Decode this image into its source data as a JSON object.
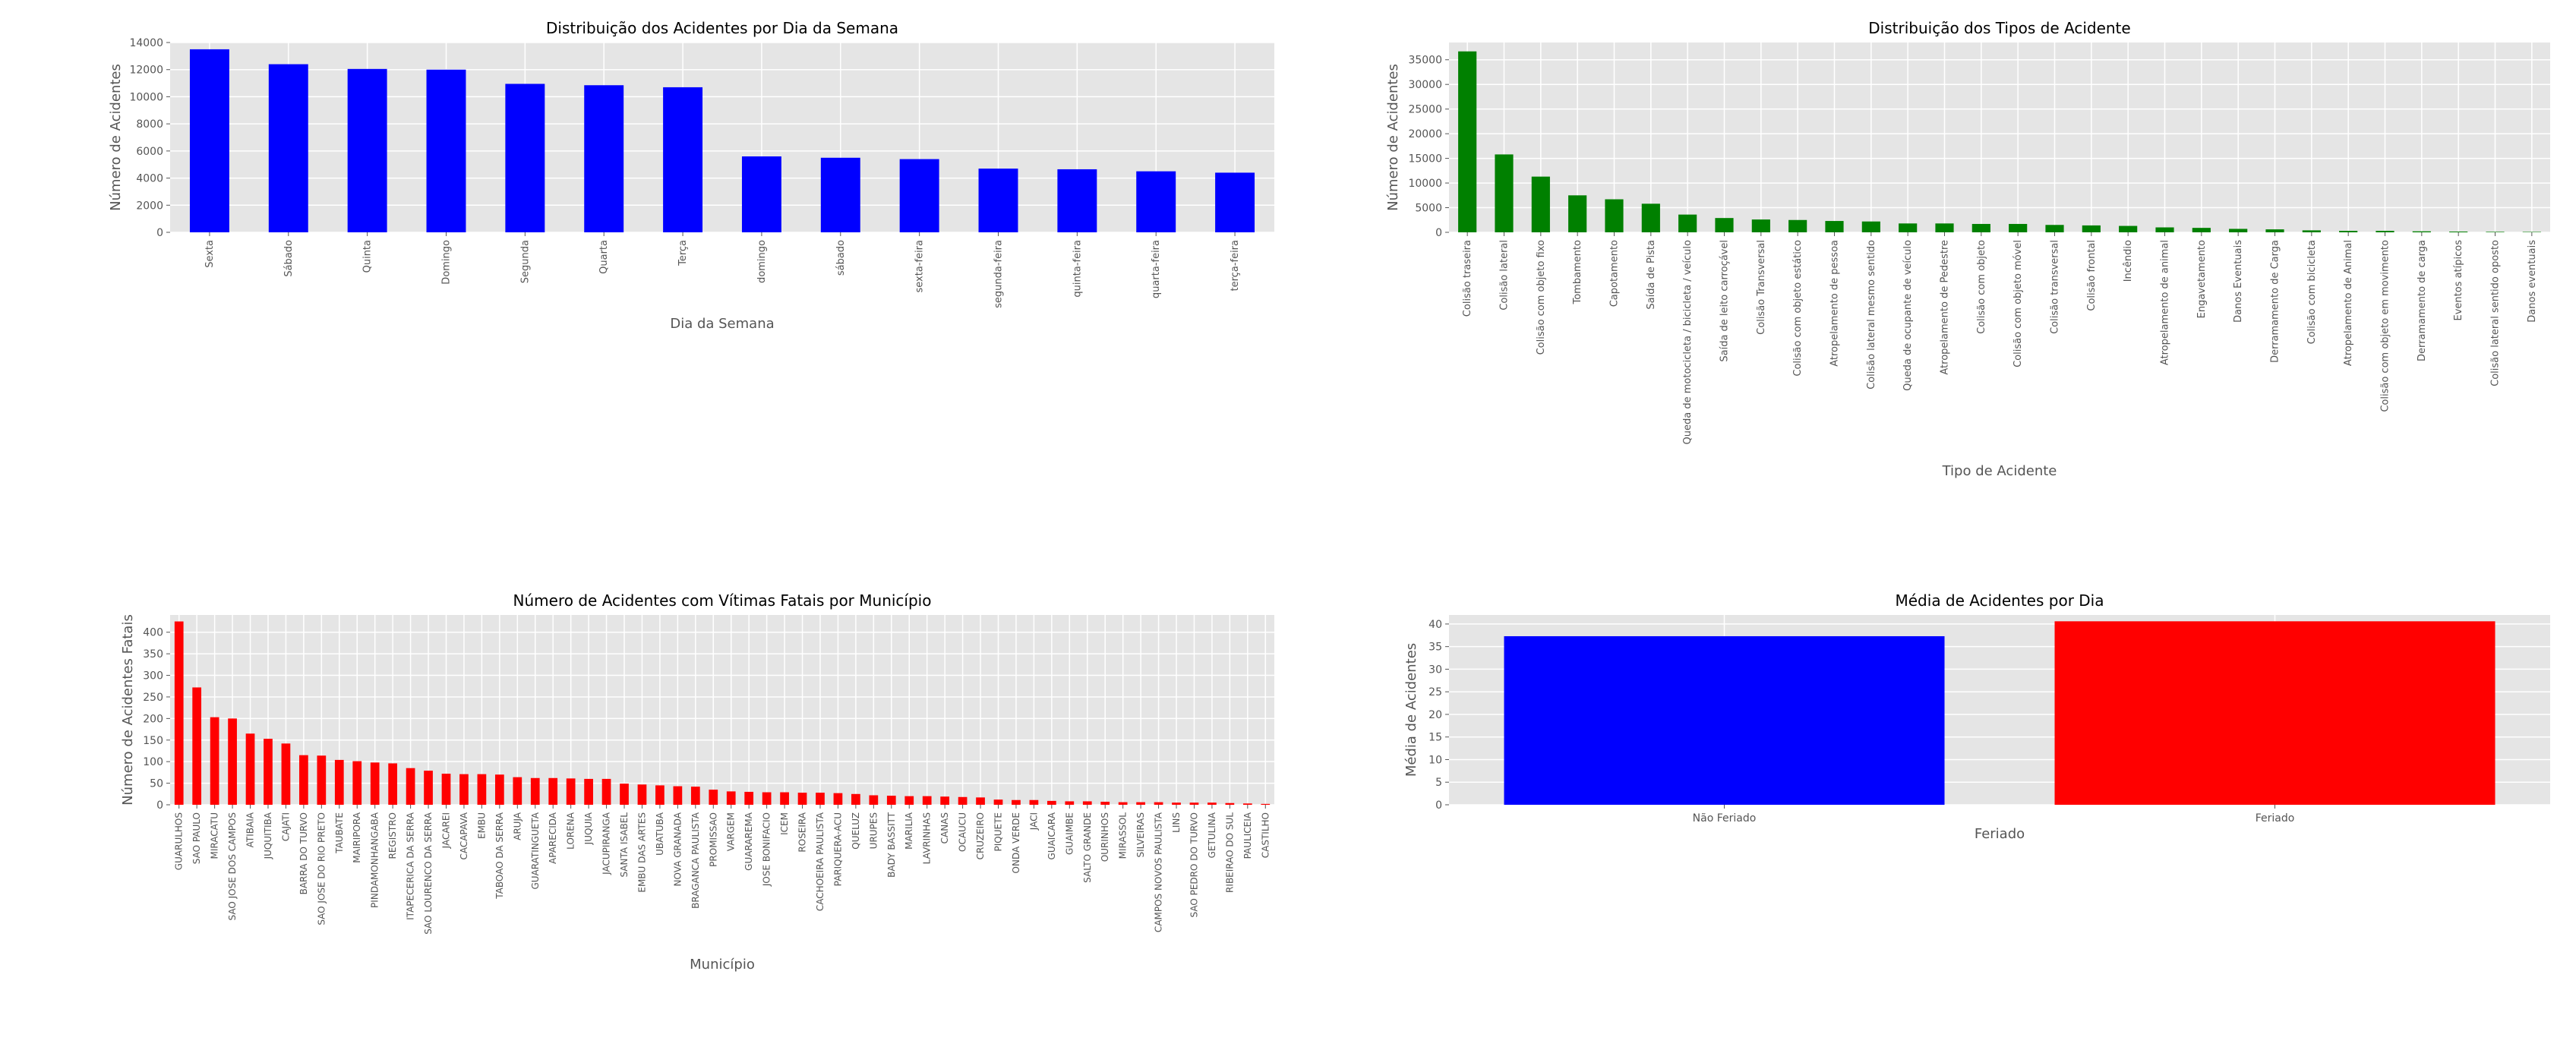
{
  "chart_data": [
    {
      "type": "bar",
      "title": "Distribuição dos Acidentes por Dia da Semana",
      "xlabel": "Dia da Semana",
      "ylabel": "Número de Acidentes",
      "bar_color": "#0000ff",
      "ylim": [
        0,
        14000
      ],
      "yticks": [
        0,
        2000,
        4000,
        6000,
        8000,
        10000,
        12000,
        14000
      ],
      "grid": true,
      "categories": [
        "Sexta",
        "Sábado",
        "Quinta",
        "Domingo",
        "Segunda",
        "Quarta",
        "Terça",
        "domingo",
        "sábado",
        "sexta-feira",
        "segunda-feira",
        "quinta-feira",
        "quarta-feira",
        "terça-feira"
      ],
      "values": [
        13500,
        12400,
        12050,
        12000,
        10950,
        10850,
        10700,
        5600,
        5500,
        5400,
        4700,
        4650,
        4500,
        4400
      ]
    },
    {
      "type": "bar",
      "title": "Distribuição dos Tipos de Acidente",
      "xlabel": "Tipo de Acidente",
      "ylabel": "Número de Acidentes",
      "bar_color": "#008000",
      "ylim": [
        0,
        38500
      ],
      "yticks": [
        0,
        5000,
        10000,
        15000,
        20000,
        25000,
        30000,
        35000
      ],
      "grid": true,
      "categories": [
        "Colisão traseira",
        "Colisão lateral",
        "Colisão com objeto fixo",
        "Tombamento",
        "Capotamento",
        "Saída de Pista",
        "Queda de motocicleta / bicicleta / veículo",
        "Saída de leito carroçável",
        "Colisão Transversal",
        "Colisão com objeto estático",
        "Atropelamento de pessoa",
        "Colisão lateral mesmo sentido",
        "Queda de ocupante de veículo",
        "Atropelamento de Pedestre",
        "Colisão com objeto",
        "Colisão com objeto móvel",
        "Colisão transversal",
        "Colisão frontal",
        "Incêndio",
        "Atropelamento de animal",
        "Engavetamento",
        "Danos Eventuais",
        "Derramamento de Carga",
        "Colisão com bicicleta",
        "Atropelamento de Animal",
        "Colisão com objeto em movimento",
        "Derramamento de carga",
        "Eventos atípicos",
        "Colisão lateral sentido oposto",
        "Danos eventuais"
      ],
      "values": [
        36700,
        15800,
        11300,
        7500,
        6700,
        5800,
        3600,
        2900,
        2600,
        2500,
        2300,
        2200,
        1800,
        1800,
        1700,
        1700,
        1500,
        1400,
        1300,
        1000,
        900,
        700,
        600,
        400,
        300,
        300,
        200,
        150,
        100,
        80
      ]
    },
    {
      "type": "bar",
      "title": "Número de Acidentes com Vítimas Fatais por Município",
      "xlabel": "Município",
      "ylabel": "Número de Acidentes Fatais",
      "bar_color": "#ff0000",
      "ylim": [
        0,
        440
      ],
      "yticks": [
        0,
        50,
        100,
        150,
        200,
        250,
        300,
        350,
        400
      ],
      "grid": true,
      "categories": [
        "GUARULHOS",
        "SAO PAULO",
        "MIRACATU",
        "SAO JOSE DOS CAMPOS",
        "ATIBAIA",
        "JUQUITIBA",
        "CAJATI",
        "BARRA DO TURVO",
        "SAO JOSE DO RIO PRETO",
        "TAUBATE",
        "MAIRIPORA",
        "PINDAMONHANGABA",
        "REGISTRO",
        "ITAPECERICA DA SERRA",
        "SAO LOURENCO DA SERRA",
        "JACAREI",
        "CACAPAVA",
        "EMBU",
        "TABOAO DA SERRA",
        "ARUJA",
        "GUARATINGUETA",
        "APARECIDA",
        "LORENA",
        "JUQUIA",
        "JACUPIRANGA",
        "SANTA ISABEL",
        "EMBU DAS ARTES",
        "UBATUBA",
        "NOVA GRANADA",
        "BRAGANCA PAULISTA",
        "PROMISSAO",
        "VARGEM",
        "GUARAREMA",
        "JOSE BONIFACIO",
        "ICEM",
        "ROSEIRA",
        "CACHOEIRA PAULISTA",
        "PARIQUERA-ACU",
        "QUELUZ",
        "URUPES",
        "BADY BASSITT",
        "MARILIA",
        "LAVRINHAS",
        "CANAS",
        "OCAUCU",
        "CRUZEIRO",
        "PIQUETE",
        "ONDA VERDE",
        "JACI",
        "GUAICARA",
        "GUAIMBE",
        "SALTO GRANDE",
        "OURINHOS",
        "MIRASSOL",
        "SILVEIRAS",
        "CAMPOS NOVOS PAULISTA",
        "LINS",
        "SAO PEDRO DO TURVO",
        "GETULINA",
        "RIBEIRAO DO SUL",
        "PAULICEIA",
        "CASTILHO"
      ],
      "values": [
        425,
        272,
        203,
        200,
        165,
        153,
        142,
        115,
        114,
        104,
        101,
        98,
        96,
        85,
        79,
        72,
        71,
        71,
        70,
        64,
        62,
        62,
        61,
        60,
        60,
        49,
        47,
        45,
        43,
        42,
        35,
        31,
        30,
        29,
        29,
        28,
        28,
        27,
        25,
        22,
        21,
        20,
        20,
        19,
        18,
        17,
        12,
        11,
        11,
        9,
        8,
        8,
        7,
        6,
        6,
        6,
        5,
        5,
        5,
        4,
        3,
        2
      ]
    },
    {
      "type": "bar",
      "title": "Média de Acidentes por Dia",
      "xlabel": "Feriado",
      "ylabel": "Média de Acidentes",
      "ylim": [
        0,
        42
      ],
      "yticks": [
        0,
        5,
        10,
        15,
        20,
        25,
        30,
        35,
        40
      ],
      "grid": true,
      "categories": [
        "Não Feriado",
        "Feriado"
      ],
      "colors": [
        "#0000ff",
        "#ff0000"
      ],
      "values": [
        37.3,
        40.6
      ]
    }
  ]
}
